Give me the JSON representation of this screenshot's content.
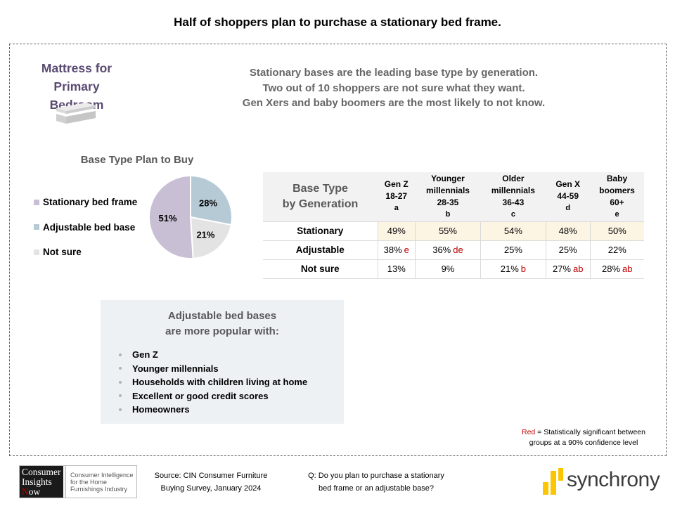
{
  "title": "Half of shoppers plan to purchase a stationary bed frame.",
  "section": {
    "label_line1": "Mattress for",
    "label_line2": "Primary  Bedroom",
    "icon": "mattress-icon"
  },
  "headline": {
    "line1": "Stationary bases are the leading base type by generation.",
    "line2": "Two out of 10 shoppers are not sure what they want.",
    "line3": "Gen Xers and baby boomers are the most likely to not know."
  },
  "chart_data": [
    {
      "type": "pie",
      "title": "Base Type Plan to Buy",
      "categories": [
        "Stationary bed frame",
        "Adjustable bed base",
        "Not sure"
      ],
      "values": [
        51,
        28,
        21
      ],
      "labels": [
        "51%",
        "28%",
        "21%"
      ],
      "colors": [
        "#c9bfd4",
        "#b6cad6",
        "#e3e3e3"
      ],
      "legend": "left"
    },
    {
      "type": "table",
      "title_line1": "Base Type",
      "title_line2": "by Generation",
      "columns": [
        {
          "name_line1": "",
          "name_line2": "Gen Z",
          "age": "18-27",
          "code": "a"
        },
        {
          "name_line1": "Younger",
          "name_line2": "millennials",
          "age": "28-35",
          "code": "b"
        },
        {
          "name_line1": "Older",
          "name_line2": "millennials",
          "age": "36-43",
          "code": "c"
        },
        {
          "name_line1": "",
          "name_line2": "Gen X",
          "age": "44-59",
          "code": "d"
        },
        {
          "name_line1": "Baby",
          "name_line2": "boomers",
          "age": "60+",
          "code": "e"
        }
      ],
      "rows": [
        {
          "label": "Stationary",
          "values": [
            "49%",
            "55%",
            "54%",
            "48%",
            "50%"
          ],
          "sig": [
            "",
            "",
            "",
            "",
            ""
          ]
        },
        {
          "label": "Adjustable",
          "values": [
            "38%",
            "36%",
            "25%",
            "25%",
            "22%"
          ],
          "sig": [
            "e",
            "de",
            "",
            "",
            ""
          ]
        },
        {
          "label": "Not sure",
          "values": [
            "13%",
            "9%",
            "21%",
            "27%",
            "28%"
          ],
          "sig": [
            "",
            "",
            "b",
            "ab",
            "ab"
          ]
        }
      ],
      "highlight_row_color": "#fdf5e4",
      "significance_color": "#c00000"
    }
  ],
  "callout": {
    "title_line1": "Adjustable bed bases",
    "title_line2": "are more popular with:",
    "items": [
      "Gen Z",
      "Younger millennials",
      "Households with children living at home",
      "Excellent or good credit scores",
      "Homeowners"
    ]
  },
  "note": {
    "red_word": "Red",
    "rest_line1": " = Statistically significant between",
    "line2": "groups at a 90% confidence level"
  },
  "footer": {
    "cin_logo": {
      "dark_line1": "Consumer",
      "dark_line2": "Insights",
      "dark_n": "N",
      "dark_line3_rest": "ow",
      "text_line1": "Consumer Intelligence",
      "text_line2": "for the Home",
      "text_line3": "Furnishings Industry"
    },
    "source_line1": "Source: CIN Consumer Furniture",
    "source_line2": "Buying Survey, January 2024",
    "question_line1": "Q: Do you plan to purchase a stationary",
    "question_line2": "bed frame or an adjustable base?",
    "brand": "synchrony",
    "brand_color": "#fbc600"
  }
}
